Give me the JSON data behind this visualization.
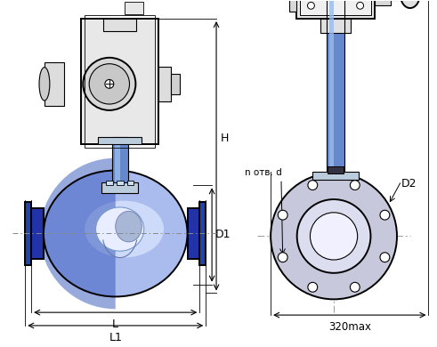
{
  "bg_color": "#ffffff",
  "line_color": "#000000",
  "blue_dark": "#2233aa",
  "blue_mid": "#3355cc",
  "blue_body": "#4466cc",
  "blue_light": "#aabbee",
  "blue_flange": "#2244aa",
  "blue_neck": "#6688cc",
  "blue_neck_hi": "#99bbee",
  "gray_act": "#e8e8e8",
  "gray_mid": "#cccccc",
  "gray_flange_rv": "#bbbbcc",
  "dim_color": "#000000",
  "label_H": "H",
  "label_D1": "D1",
  "label_L": "L",
  "label_L1": "L1",
  "label_n_otv_d": "n отв. d",
  "label_D2": "D2",
  "label_320max": "320max",
  "figsize": [
    4.91,
    3.9
  ],
  "dpi": 100
}
